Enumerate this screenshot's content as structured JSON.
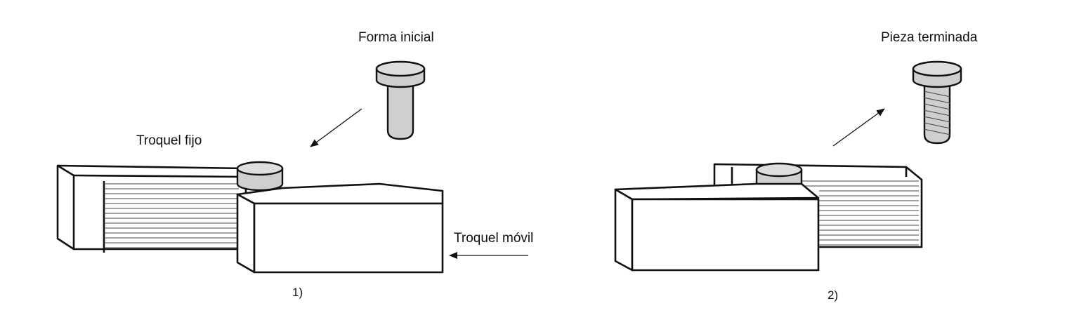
{
  "panel1": {
    "initial_form_label": "Forma inicial",
    "fixed_die_label": "Troquel fijo",
    "moving_die_label": "Troquel móvil",
    "step_number": "1)"
  },
  "panel2": {
    "finished_piece_label": "Pieza terminada",
    "step_number": "2)"
  },
  "colors": {
    "line": "#111111",
    "part_gray": "#cfcfcf",
    "background": "#ffffff"
  }
}
